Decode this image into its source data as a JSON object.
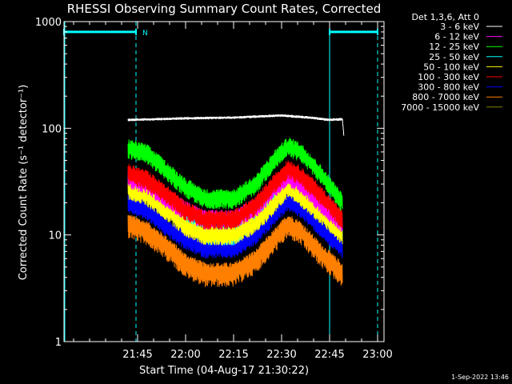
{
  "chart_data": {
    "type": "line",
    "title": "RHESSI Observing Summary Count Rates, Corrected",
    "xlabel": "Start Time (04-Aug-17 21:30:22)",
    "ylabel": "Corrected Count Rate (s⁻¹ detector⁻¹)",
    "yscale": "log",
    "ylim": [
      1,
      1000
    ],
    "xlim": [
      -8,
      92
    ],
    "xticks": [
      {
        "x": 15,
        "label": "21:45"
      },
      {
        "x": 30,
        "label": "22:00"
      },
      {
        "x": 45,
        "label": "22:15"
      },
      {
        "x": 60,
        "label": "22:30"
      },
      {
        "x": 75,
        "label": "22:45"
      },
      {
        "x": 90,
        "label": "23:00"
      }
    ],
    "yticks": [
      {
        "y": 1,
        "label": "1"
      },
      {
        "y": 10,
        "label": "10"
      },
      {
        "y": 100,
        "label": "100"
      },
      {
        "y": 1000,
        "label": "1000"
      }
    ],
    "legend_title": "Det 1,3,6, Att 0",
    "legend_position": "outside-right",
    "series": [
      {
        "name": "3 - 6 keV",
        "color": "#ffffff",
        "x": [
          12,
          18,
          30,
          45,
          60,
          70,
          75,
          79,
          79.5
        ],
        "y": [
          120,
          121,
          124,
          126,
          132,
          125,
          120,
          122,
          82
        ]
      },
      {
        "name": "6 - 12 keV",
        "color": "#ff00ff",
        "x": [
          12,
          18,
          24,
          30,
          36,
          45,
          52,
          58,
          62,
          66,
          72,
          79
        ],
        "y": [
          34,
          30,
          22,
          17,
          14,
          14,
          18,
          28,
          36,
          30,
          20,
          13
        ]
      },
      {
        "name": "12 - 25 keV",
        "color": "#00ff00",
        "x": [
          12,
          18,
          24,
          30,
          36,
          45,
          52,
          58,
          62,
          66,
          72,
          79
        ],
        "y": [
          65,
          58,
          40,
          28,
          22,
          22,
          30,
          52,
          68,
          60,
          38,
          20
        ]
      },
      {
        "name": "25 - 50 keV",
        "color": "#00ffff",
        "x": [
          12,
          18,
          24,
          30,
          36,
          45,
          52,
          58,
          62,
          66,
          72,
          79
        ],
        "y": [
          34,
          29,
          20,
          14,
          10,
          10,
          14,
          26,
          34,
          29,
          18,
          11
        ]
      },
      {
        "name": "50 - 100 keV",
        "color": "#ffff00",
        "x": [
          12,
          18,
          24,
          30,
          36,
          45,
          52,
          58,
          62,
          66,
          72,
          79
        ],
        "y": [
          27,
          23,
          17,
          12,
          10,
          10,
          13,
          20,
          28,
          23,
          16,
          10
        ]
      },
      {
        "name": "100 - 300 keV",
        "color": "#ff0000",
        "x": [
          12,
          18,
          24,
          30,
          36,
          45,
          52,
          58,
          62,
          66,
          72,
          79
        ],
        "y": [
          38,
          33,
          24,
          17,
          14,
          14,
          19,
          31,
          42,
          36,
          24,
          14
        ]
      },
      {
        "name": "300 - 800 keV",
        "color": "#0000ff",
        "x": [
          12,
          18,
          24,
          30,
          36,
          45,
          52,
          58,
          62,
          66,
          72,
          79
        ],
        "y": [
          20,
          17,
          12,
          9,
          7.5,
          7.5,
          10,
          16,
          21,
          18,
          12,
          7.5
        ]
      },
      {
        "name": "800 - 7000 keV",
        "color": "#ff8000",
        "x": [
          12,
          18,
          24,
          30,
          36,
          45,
          52,
          58,
          62,
          66,
          72,
          79
        ],
        "y": [
          13,
          11,
          8,
          5.5,
          4.5,
          4.5,
          6,
          9.5,
          13,
          11,
          7,
          4.5
        ]
      },
      {
        "name": "7000 - 15000 keV",
        "color": "#808000",
        "x": [],
        "y": []
      }
    ],
    "annotations": [
      {
        "label": "N",
        "x": 14.5,
        "y": 800
      },
      {
        "type": "flag-bar",
        "x": [
          -8,
          14.5
        ],
        "y": 800
      },
      {
        "type": "flag-bar",
        "x": [
          75,
          90
        ],
        "y": 800
      },
      {
        "type": "vline-solid",
        "x": -8
      },
      {
        "type": "vline-dashed",
        "x": 14.5
      },
      {
        "type": "vline-solid",
        "x": 75
      },
      {
        "type": "vline-dashed",
        "x": 90
      }
    ],
    "footer": "1-Sep-2022 13:46",
    "colors": {
      "background": "#000000",
      "axes": "#ffffff",
      "annotation": "#00ffff"
    }
  }
}
